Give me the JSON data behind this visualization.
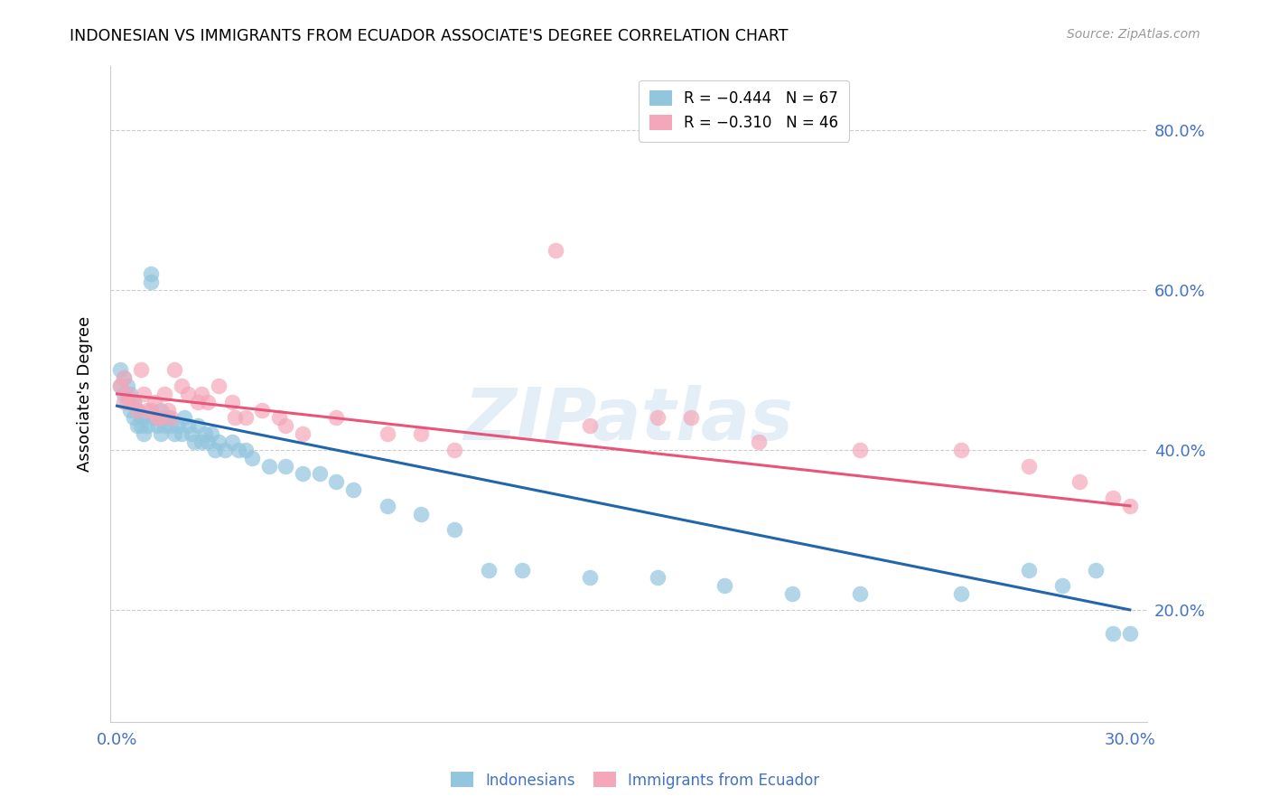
{
  "title": "INDONESIAN VS IMMIGRANTS FROM ECUADOR ASSOCIATE'S DEGREE CORRELATION CHART",
  "source": "Source: ZipAtlas.com",
  "ylabel": "Associate's Degree",
  "ytick_values": [
    0.2,
    0.4,
    0.6,
    0.8
  ],
  "xlim": [
    -0.002,
    0.305
  ],
  "ylim": [
    0.06,
    0.88
  ],
  "color_blue": "#92c5de",
  "color_pink": "#f4a7b9",
  "line_color_blue": "#2166ac",
  "line_color_pink": "#e8547a",
  "watermark": "ZIPatlas",
  "indonesian_x": [
    0.001,
    0.001,
    0.002,
    0.002,
    0.003,
    0.003,
    0.004,
    0.004,
    0.005,
    0.005,
    0.006,
    0.006,
    0.007,
    0.007,
    0.008,
    0.008,
    0.009,
    0.01,
    0.01,
    0.011,
    0.012,
    0.013,
    0.013,
    0.014,
    0.015,
    0.016,
    0.017,
    0.018,
    0.019,
    0.02,
    0.021,
    0.022,
    0.023,
    0.024,
    0.025,
    0.026,
    0.027,
    0.028,
    0.029,
    0.03,
    0.032,
    0.034,
    0.036,
    0.038,
    0.04,
    0.045,
    0.05,
    0.055,
    0.06,
    0.065,
    0.07,
    0.08,
    0.09,
    0.1,
    0.11,
    0.12,
    0.14,
    0.16,
    0.18,
    0.2,
    0.22,
    0.25,
    0.27,
    0.28,
    0.29,
    0.295,
    0.3
  ],
  "indonesian_y": [
    0.48,
    0.5,
    0.49,
    0.47,
    0.48,
    0.46,
    0.47,
    0.45,
    0.46,
    0.44,
    0.45,
    0.43,
    0.44,
    0.43,
    0.44,
    0.42,
    0.43,
    0.62,
    0.61,
    0.44,
    0.43,
    0.42,
    0.45,
    0.43,
    0.44,
    0.43,
    0.42,
    0.43,
    0.42,
    0.44,
    0.43,
    0.42,
    0.41,
    0.43,
    0.41,
    0.42,
    0.41,
    0.42,
    0.4,
    0.41,
    0.4,
    0.41,
    0.4,
    0.4,
    0.39,
    0.38,
    0.38,
    0.37,
    0.37,
    0.36,
    0.35,
    0.33,
    0.32,
    0.3,
    0.25,
    0.25,
    0.24,
    0.24,
    0.23,
    0.22,
    0.22,
    0.22,
    0.25,
    0.23,
    0.25,
    0.17,
    0.17
  ],
  "ecuador_x": [
    0.001,
    0.002,
    0.002,
    0.003,
    0.004,
    0.005,
    0.006,
    0.007,
    0.008,
    0.009,
    0.01,
    0.011,
    0.012,
    0.013,
    0.014,
    0.015,
    0.016,
    0.017,
    0.019,
    0.021,
    0.024,
    0.027,
    0.03,
    0.034,
    0.038,
    0.043,
    0.048,
    0.055,
    0.065,
    0.08,
    0.1,
    0.13,
    0.16,
    0.19,
    0.22,
    0.25,
    0.27,
    0.285,
    0.295,
    0.3,
    0.14,
    0.17,
    0.09,
    0.05,
    0.035,
    0.025
  ],
  "ecuador_y": [
    0.48,
    0.49,
    0.46,
    0.47,
    0.46,
    0.46,
    0.45,
    0.5,
    0.47,
    0.45,
    0.45,
    0.46,
    0.44,
    0.44,
    0.47,
    0.45,
    0.44,
    0.5,
    0.48,
    0.47,
    0.46,
    0.46,
    0.48,
    0.46,
    0.44,
    0.45,
    0.44,
    0.42,
    0.44,
    0.42,
    0.4,
    0.65,
    0.44,
    0.41,
    0.4,
    0.4,
    0.38,
    0.36,
    0.34,
    0.33,
    0.43,
    0.44,
    0.42,
    0.43,
    0.44,
    0.47
  ]
}
